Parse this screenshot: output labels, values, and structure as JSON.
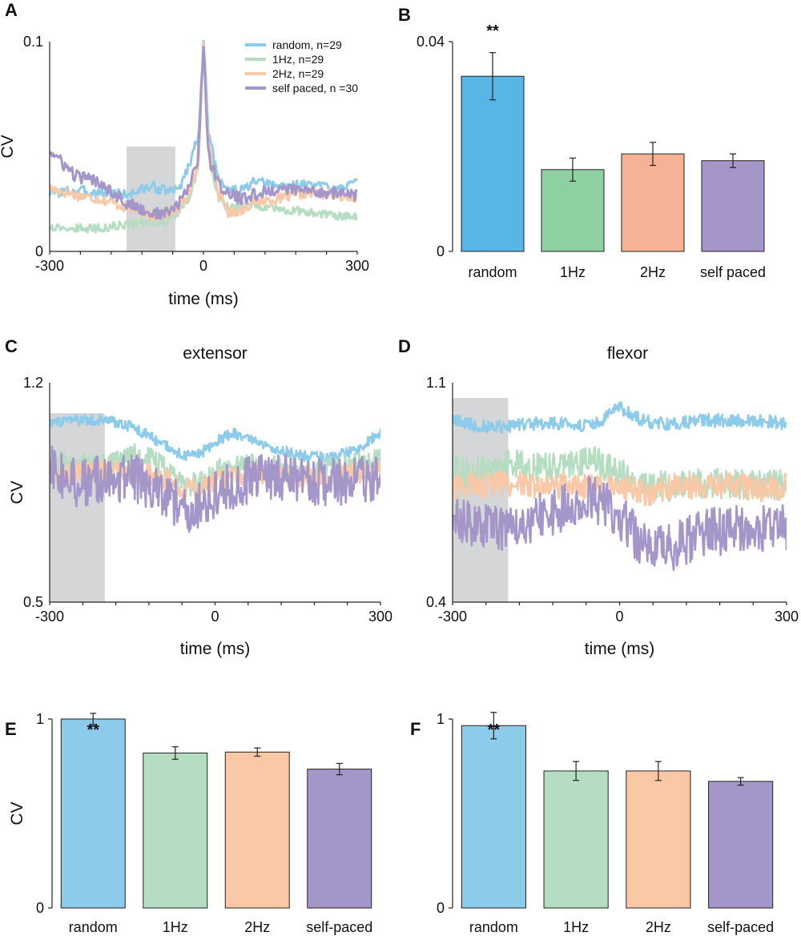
{
  "colors": {
    "random": "#8ccbea",
    "1Hz": "#b5ddc1",
    "2Hz": "#f9c8a6",
    "self": "#a496c9",
    "random_B": "#58b6e6",
    "1Hz_B": "#8fd0a3",
    "2Hz_B": "#f6b294",
    "self_B": "#a595c9",
    "shade": "#d5d6d8"
  },
  "chart_data": [
    {
      "panel": "A",
      "type": "line",
      "title": "",
      "xlabel": "time (ms)",
      "ylabel": "CV",
      "xlim": [
        -300,
        300
      ],
      "ylim": [
        0,
        0.1
      ],
      "xticks": [
        "-300",
        "0",
        "300"
      ],
      "yticks": [
        "0.1",
        "0"
      ],
      "shaded_window": [
        -150,
        -55
      ],
      "legend": [
        "random, n=29",
        "1Hz, n=29",
        "2Hz, n=29",
        "self paced, n =30"
      ],
      "legend_position": "top-right",
      "series": [
        {
          "name": "random",
          "x": [
            -300,
            -250,
            -200,
            -150,
            -100,
            -75,
            -50,
            -30,
            -10,
            0,
            10,
            30,
            50,
            75,
            100,
            150,
            200,
            250,
            300
          ],
          "y": [
            0.028,
            0.029,
            0.028,
            0.027,
            0.031,
            0.029,
            0.029,
            0.04,
            0.055,
            0.1,
            0.055,
            0.035,
            0.029,
            0.029,
            0.033,
            0.031,
            0.032,
            0.031,
            0.032
          ]
        },
        {
          "name": "1Hz",
          "x": [
            -300,
            -250,
            -200,
            -150,
            -100,
            -75,
            -50,
            -30,
            -10,
            0,
            10,
            30,
            50,
            75,
            100,
            150,
            200,
            250,
            300
          ],
          "y": [
            0.012,
            0.011,
            0.011,
            0.013,
            0.014,
            0.014,
            0.018,
            0.025,
            0.04,
            0.1,
            0.045,
            0.025,
            0.02,
            0.022,
            0.022,
            0.02,
            0.019,
            0.017,
            0.016
          ]
        },
        {
          "name": "2Hz",
          "x": [
            -300,
            -250,
            -200,
            -150,
            -100,
            -75,
            -50,
            -30,
            -10,
            0,
            10,
            30,
            50,
            75,
            100,
            150,
            200,
            250,
            300
          ],
          "y": [
            0.03,
            0.027,
            0.025,
            0.021,
            0.017,
            0.018,
            0.02,
            0.027,
            0.04,
            0.1,
            0.05,
            0.027,
            0.018,
            0.02,
            0.024,
            0.025,
            0.028,
            0.027,
            0.026
          ]
        },
        {
          "name": "self paced",
          "x": [
            -300,
            -250,
            -200,
            -150,
            -100,
            -75,
            -50,
            -30,
            -10,
            0,
            10,
            30,
            50,
            75,
            100,
            150,
            200,
            250,
            300
          ],
          "y": [
            0.048,
            0.036,
            0.033,
            0.023,
            0.018,
            0.018,
            0.022,
            0.03,
            0.045,
            0.1,
            0.045,
            0.032,
            0.027,
            0.025,
            0.027,
            0.03,
            0.029,
            0.028,
            0.027
          ]
        }
      ]
    },
    {
      "panel": "B",
      "type": "bar",
      "xlabel": "",
      "ylabel": "",
      "ylim": [
        0,
        0.04
      ],
      "yticks": [
        "0.04",
        "0"
      ],
      "categories": [
        "random",
        "1Hz",
        "2Hz",
        "self paced"
      ],
      "values": [
        0.0334,
        0.0156,
        0.0186,
        0.0173
      ],
      "errors": [
        0.0045,
        0.0022,
        0.0022,
        0.0013
      ],
      "significance": {
        "label": "**",
        "category": "random"
      }
    },
    {
      "panel": "C",
      "type": "line",
      "title": "extensor",
      "xlabel": "time (ms)",
      "ylabel": "CV",
      "xlim": [
        -300,
        300
      ],
      "ylim": [
        0.5,
        1.2
      ],
      "xticks": [
        "-300",
        "0",
        "300"
      ],
      "yticks": [
        "1.2",
        "0.5"
      ],
      "shaded_window": [
        -300,
        -200
      ],
      "series": [
        {
          "name": "random",
          "x": [
            -300,
            -250,
            -200,
            -150,
            -100,
            -60,
            -30,
            0,
            30,
            60,
            100,
            150,
            200,
            250,
            300
          ],
          "y": [
            1.07,
            1.08,
            1.08,
            1.06,
            1.01,
            0.97,
            0.97,
            1.01,
            1.04,
            1.02,
            0.99,
            0.97,
            0.96,
            0.98,
            1.04
          ]
        },
        {
          "name": "1Hz",
          "x": [
            -300,
            -250,
            -200,
            -150,
            -100,
            -60,
            -30,
            0,
            30,
            60,
            100,
            150,
            200,
            250,
            300
          ],
          "y": [
            0.95,
            0.93,
            0.93,
            0.97,
            0.94,
            0.88,
            0.87,
            0.91,
            0.93,
            0.94,
            0.93,
            0.92,
            0.92,
            0.93,
            0.95
          ]
        },
        {
          "name": "2Hz",
          "x": [
            -300,
            -250,
            -200,
            -150,
            -100,
            -60,
            -30,
            0,
            30,
            60,
            100,
            150,
            200,
            250,
            300
          ],
          "y": [
            0.92,
            0.91,
            0.92,
            0.92,
            0.9,
            0.86,
            0.86,
            0.89,
            0.9,
            0.91,
            0.91,
            0.9,
            0.9,
            0.91,
            0.92
          ]
        },
        {
          "name": "self paced",
          "x": [
            -300,
            -250,
            -200,
            -150,
            -100,
            -60,
            -30,
            0,
            30,
            60,
            100,
            150,
            200,
            250,
            300
          ],
          "y": [
            0.93,
            0.88,
            0.89,
            0.9,
            0.85,
            0.8,
            0.8,
            0.84,
            0.87,
            0.89,
            0.9,
            0.89,
            0.88,
            0.89,
            0.9
          ]
        }
      ]
    },
    {
      "panel": "D",
      "type": "line",
      "title": "flexor",
      "xlabel": "time (ms)",
      "ylabel": "",
      "xlim": [
        -300,
        300
      ],
      "ylim": [
        0.4,
        1.1
      ],
      "xticks": [
        "-300",
        "0",
        "300"
      ],
      "yticks": [
        "1.1",
        "0.4"
      ],
      "shaded_window": [
        -300,
        -200
      ],
      "series": [
        {
          "name": "random",
          "x": [
            -300,
            -250,
            -200,
            -150,
            -100,
            -50,
            0,
            30,
            60,
            100,
            150,
            200,
            250,
            300
          ],
          "y": [
            0.98,
            0.96,
            0.96,
            0.97,
            0.97,
            0.96,
            1.02,
            0.99,
            0.97,
            0.97,
            0.98,
            0.98,
            0.98,
            0.97
          ]
        },
        {
          "name": "1Hz",
          "x": [
            -300,
            -250,
            -200,
            -150,
            -100,
            -50,
            0,
            30,
            60,
            100,
            150,
            200,
            250,
            300
          ],
          "y": [
            0.82,
            0.81,
            0.84,
            0.83,
            0.84,
            0.85,
            0.82,
            0.78,
            0.77,
            0.77,
            0.78,
            0.78,
            0.77,
            0.78
          ]
        },
        {
          "name": "2Hz",
          "x": [
            -300,
            -250,
            -200,
            -150,
            -100,
            -50,
            0,
            30,
            60,
            100,
            150,
            200,
            250,
            300
          ],
          "y": [
            0.77,
            0.77,
            0.78,
            0.77,
            0.77,
            0.77,
            0.77,
            0.75,
            0.75,
            0.77,
            0.77,
            0.77,
            0.76,
            0.77
          ]
        },
        {
          "name": "self paced",
          "x": [
            -300,
            -250,
            -200,
            -150,
            -100,
            -50,
            0,
            30,
            60,
            100,
            150,
            200,
            250,
            300
          ],
          "y": [
            0.65,
            0.65,
            0.64,
            0.67,
            0.7,
            0.73,
            0.68,
            0.6,
            0.56,
            0.58,
            0.62,
            0.63,
            0.64,
            0.64
          ]
        }
      ]
    },
    {
      "panel": "E",
      "type": "bar",
      "xlabel": "",
      "ylabel": "CV",
      "ylim": [
        0,
        1
      ],
      "yticks": [
        "1",
        "0"
      ],
      "categories": [
        "random",
        "1Hz",
        "2Hz",
        "self-paced"
      ],
      "values": [
        1.0,
        0.82,
        0.825,
        0.735
      ],
      "errors": [
        0.03,
        0.033,
        0.022,
        0.03
      ],
      "significance": {
        "label": "**",
        "category": "random"
      }
    },
    {
      "panel": "F",
      "type": "bar",
      "xlabel": "",
      "ylabel": "",
      "ylim": [
        0,
        1
      ],
      "yticks": [
        "1",
        "0"
      ],
      "categories": [
        "random",
        "1Hz",
        "2Hz",
        "self-paced"
      ],
      "values": [
        0.965,
        0.725,
        0.725,
        0.67
      ],
      "errors": [
        0.07,
        0.05,
        0.05,
        0.02
      ],
      "significance": {
        "label": "**",
        "category": "random"
      }
    }
  ]
}
